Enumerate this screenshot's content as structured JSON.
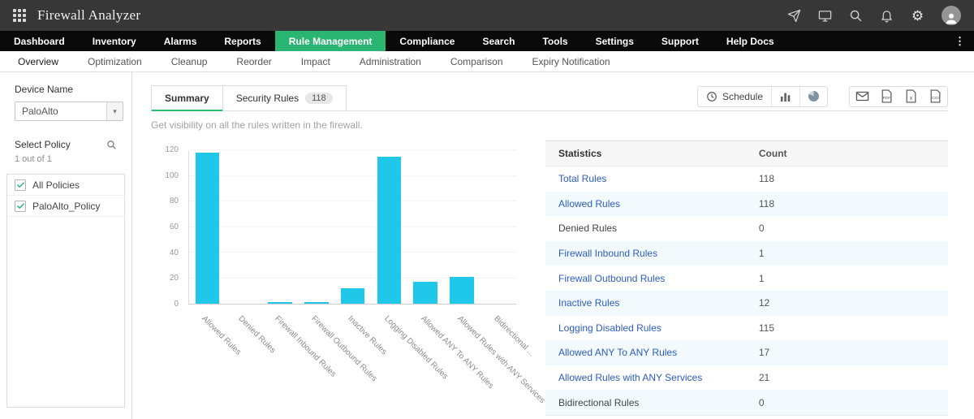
{
  "topbar": {
    "title": "Firewall Analyzer",
    "icons": [
      "apps-grid",
      "paper-plane",
      "monitor-share",
      "search",
      "notifications",
      "settings-gear",
      "user-avatar"
    ]
  },
  "nav": {
    "active": "Rule Management",
    "items": [
      {
        "label": "Dashboard"
      },
      {
        "label": "Inventory"
      },
      {
        "label": "Alarms"
      },
      {
        "label": "Reports"
      },
      {
        "label": "Rule Management"
      },
      {
        "label": "Compliance"
      },
      {
        "label": "Search"
      },
      {
        "label": "Tools"
      },
      {
        "label": "Settings"
      },
      {
        "label": "Support"
      },
      {
        "label": "Help Docs"
      }
    ],
    "overflow_icon": "kebab-menu"
  },
  "subnav": {
    "active": "Overview",
    "items": [
      "Overview",
      "Optimization",
      "Cleanup",
      "Reorder",
      "Impact",
      "Administration",
      "Comparison",
      "Expiry Notification"
    ]
  },
  "sidebar": {
    "device_label": "Device Name",
    "device_value": "PaloAlto",
    "policy_label": "Select Policy",
    "policy_count": "1 out of 1",
    "policies": [
      {
        "label": "All Policies",
        "checked": true
      },
      {
        "label": "PaloAlto_Policy",
        "checked": true
      }
    ]
  },
  "main": {
    "tabs": [
      {
        "label": "Summary",
        "active": true
      },
      {
        "label": "Security Rules",
        "badge": "118",
        "active": false
      }
    ],
    "toolbar": {
      "schedule_label": "Schedule",
      "icons": [
        "clock",
        "bar-chart",
        "pie-chart",
        "email",
        "pdf-export",
        "excel-export",
        "csv-export"
      ]
    },
    "subtitle": "Get visibility on all the rules written in the firewall."
  },
  "chart_data": {
    "type": "bar",
    "title": "",
    "categories": [
      "Allowed Rules",
      "Denied Rules",
      "Firewall Inbound Rules",
      "Firewall Outbound Rules",
      "Inactive Rules",
      "Logging Disabled Rules",
      "Allowed ANY To ANY Rules",
      "Allowed Rules with ANY Services",
      "Bidirectional ..."
    ],
    "values": [
      118,
      0,
      1,
      1,
      12,
      115,
      17,
      21,
      0
    ],
    "xlabel": "",
    "ylabel": "",
    "ylim": [
      0,
      120
    ],
    "ytick_step": 20,
    "bar_color": "#1fc8e8",
    "grid": true,
    "legend": false
  },
  "stats_table": {
    "headers": [
      "Statistics",
      "Count"
    ],
    "rows": [
      {
        "label": "Total Rules",
        "count": "118",
        "link": true
      },
      {
        "label": "Allowed Rules",
        "count": "118",
        "link": true
      },
      {
        "label": "Denied Rules",
        "count": "0",
        "link": false
      },
      {
        "label": "Firewall Inbound Rules",
        "count": "1",
        "link": true
      },
      {
        "label": "Firewall Outbound Rules",
        "count": "1",
        "link": true
      },
      {
        "label": "Inactive Rules",
        "count": "12",
        "link": true
      },
      {
        "label": "Logging Disabled Rules",
        "count": "115",
        "link": true
      },
      {
        "label": "Allowed ANY To ANY Rules",
        "count": "17",
        "link": true
      },
      {
        "label": "Allowed Rules with ANY Services",
        "count": "21",
        "link": true
      },
      {
        "label": "Bidirectional Rules",
        "count": "0",
        "link": false
      }
    ]
  },
  "colors": {
    "accent_green": "#2bb573",
    "bar_cyan": "#1fc8e8",
    "link_blue": "#2c5cc5"
  }
}
